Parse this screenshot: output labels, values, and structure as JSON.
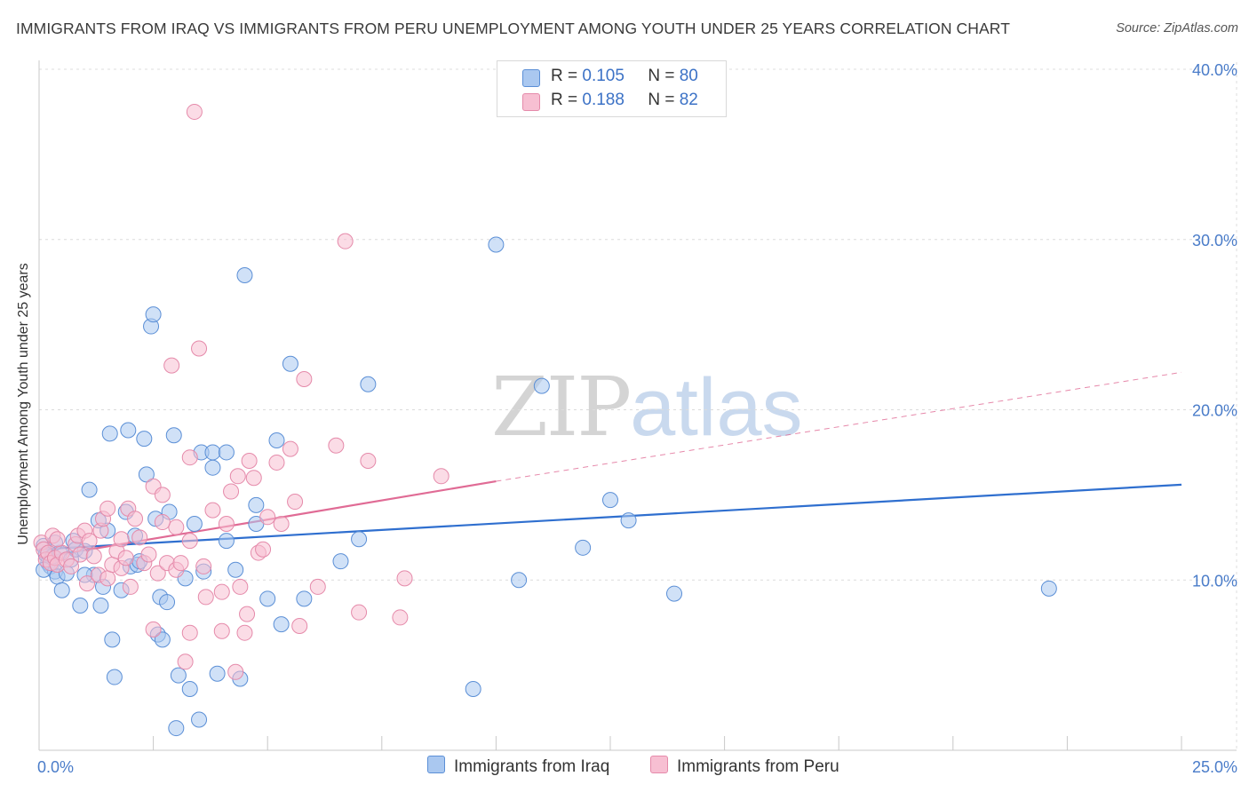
{
  "title": "IMMIGRANTS FROM IRAQ VS IMMIGRANTS FROM PERU UNEMPLOYMENT AMONG YOUTH UNDER 25 YEARS CORRELATION CHART",
  "source": "Source: ZipAtlas.com",
  "watermark": {
    "zip": "ZIP",
    "atlas": "atlas"
  },
  "legend": {
    "r_label": "R =",
    "n_label": "N =",
    "iraq": {
      "r": "0.105",
      "n": "80"
    },
    "peru": {
      "r": "0.188",
      "n": "82"
    }
  },
  "bottom_legend": {
    "iraq": "Immigrants from Iraq",
    "peru": "Immigrants from Peru"
  },
  "colors": {
    "iraq_fill": "#aac8f0",
    "iraq_stroke": "#5b8fd6",
    "iraq_line": "#2f6fcf",
    "peru_fill": "#f7bfd2",
    "peru_stroke": "#e58aaa",
    "peru_line": "#e06b95",
    "grid": "#dcdcdc",
    "tick_text": "#4a7cc9"
  },
  "chart_data": {
    "type": "scatter",
    "title": "IMMIGRANTS FROM IRAQ VS IMMIGRANTS FROM PERU UNEMPLOYMENT AMONG YOUTH UNDER 25 YEARS CORRELATION CHART",
    "xlabel": "",
    "ylabel": "Unemployment Among Youth under 25 years",
    "xlim": [
      0,
      25
    ],
    "ylim": [
      0,
      40
    ],
    "x_tick_labels": [
      "0.0%",
      "25.0%"
    ],
    "y_ticks": [
      10,
      20,
      30,
      40
    ],
    "y_tick_labels": [
      "10.0%",
      "20.0%",
      "30.0%",
      "40.0%"
    ],
    "series": [
      {
        "name": "Immigrants from Iraq",
        "trend": {
          "x": [
            0,
            25
          ],
          "y": [
            11.8,
            15.6
          ],
          "dashed": false
        },
        "points": [
          [
            0.1,
            12.0
          ],
          [
            0.15,
            11.5
          ],
          [
            0.2,
            11.0
          ],
          [
            0.25,
            10.8
          ],
          [
            0.3,
            11.4
          ],
          [
            0.35,
            10.5
          ],
          [
            0.4,
            10.2
          ],
          [
            0.45,
            11.6
          ],
          [
            0.5,
            9.4
          ],
          [
            0.6,
            10.4
          ],
          [
            0.7,
            11.2
          ],
          [
            0.75,
            12.3
          ],
          [
            0.8,
            11.8
          ],
          [
            0.9,
            8.5
          ],
          [
            1.0,
            11.7
          ],
          [
            1.1,
            15.3
          ],
          [
            1.2,
            10.3
          ],
          [
            1.3,
            13.5
          ],
          [
            1.35,
            8.5
          ],
          [
            1.4,
            9.6
          ],
          [
            1.5,
            12.9
          ],
          [
            1.55,
            18.6
          ],
          [
            1.6,
            6.5
          ],
          [
            1.65,
            4.3
          ],
          [
            1.8,
            9.4
          ],
          [
            1.9,
            14.0
          ],
          [
            1.95,
            18.8
          ],
          [
            2.0,
            10.8
          ],
          [
            2.1,
            12.6
          ],
          [
            2.15,
            10.9
          ],
          [
            2.2,
            11.1
          ],
          [
            2.3,
            18.3
          ],
          [
            2.35,
            16.2
          ],
          [
            2.45,
            24.9
          ],
          [
            2.5,
            25.6
          ],
          [
            2.55,
            13.6
          ],
          [
            2.6,
            6.8
          ],
          [
            2.65,
            9.0
          ],
          [
            2.7,
            6.5
          ],
          [
            2.8,
            8.7
          ],
          [
            2.85,
            14.0
          ],
          [
            2.95,
            18.5
          ],
          [
            3.0,
            1.3
          ],
          [
            3.05,
            4.4
          ],
          [
            3.2,
            10.1
          ],
          [
            3.3,
            3.6
          ],
          [
            3.4,
            13.3
          ],
          [
            3.5,
            1.8
          ],
          [
            3.55,
            17.5
          ],
          [
            3.6,
            10.5
          ],
          [
            3.8,
            16.6
          ],
          [
            3.8,
            17.5
          ],
          [
            3.9,
            4.5
          ],
          [
            4.1,
            12.3
          ],
          [
            4.1,
            17.5
          ],
          [
            4.3,
            10.6
          ],
          [
            4.4,
            4.2
          ],
          [
            4.5,
            27.9
          ],
          [
            4.75,
            14.4
          ],
          [
            4.75,
            13.3
          ],
          [
            5.0,
            8.9
          ],
          [
            5.2,
            18.2
          ],
          [
            5.3,
            7.4
          ],
          [
            5.5,
            22.7
          ],
          [
            5.8,
            8.9
          ],
          [
            6.6,
            11.1
          ],
          [
            7.0,
            12.4
          ],
          [
            7.2,
            21.5
          ],
          [
            9.5,
            3.6
          ],
          [
            10.0,
            29.7
          ],
          [
            10.5,
            10.0
          ],
          [
            11.0,
            21.4
          ],
          [
            11.9,
            11.9
          ],
          [
            12.5,
            14.7
          ],
          [
            12.9,
            13.5
          ],
          [
            13.9,
            9.2
          ],
          [
            22.1,
            9.5
          ],
          [
            0.1,
            10.6
          ],
          [
            0.35,
            12.2
          ],
          [
            1.0,
            10.3
          ]
        ]
      },
      {
        "name": "Immigrants from Peru",
        "trend": {
          "x": [
            0,
            10
          ],
          "y": [
            11.3,
            15.8
          ],
          "dashed": false,
          "extension": {
            "x": [
              10,
              25
            ],
            "y": [
              15.8,
              22.2
            ],
            "dashed": true
          }
        },
        "points": [
          [
            0.05,
            12.2
          ],
          [
            0.1,
            11.8
          ],
          [
            0.15,
            11.2
          ],
          [
            0.2,
            11.6
          ],
          [
            0.25,
            11.0
          ],
          [
            0.3,
            12.6
          ],
          [
            0.35,
            11.3
          ],
          [
            0.4,
            10.9
          ],
          [
            0.5,
            11.6
          ],
          [
            0.6,
            11.2
          ],
          [
            0.7,
            10.8
          ],
          [
            0.8,
            12.1
          ],
          [
            0.85,
            12.6
          ],
          [
            0.9,
            11.5
          ],
          [
            1.0,
            12.9
          ],
          [
            1.05,
            9.8
          ],
          [
            1.2,
            11.4
          ],
          [
            1.3,
            10.3
          ],
          [
            1.35,
            12.9
          ],
          [
            1.4,
            13.6
          ],
          [
            1.5,
            10.1
          ],
          [
            1.5,
            14.2
          ],
          [
            1.6,
            10.9
          ],
          [
            1.7,
            11.7
          ],
          [
            1.8,
            12.4
          ],
          [
            1.8,
            10.7
          ],
          [
            1.9,
            11.3
          ],
          [
            1.95,
            14.2
          ],
          [
            2.0,
            9.6
          ],
          [
            2.1,
            13.6
          ],
          [
            2.2,
            12.5
          ],
          [
            2.3,
            11.0
          ],
          [
            2.4,
            11.5
          ],
          [
            2.5,
            15.5
          ],
          [
            2.5,
            7.1
          ],
          [
            2.6,
            10.4
          ],
          [
            2.7,
            15.0
          ],
          [
            2.8,
            11.0
          ],
          [
            2.9,
            22.6
          ],
          [
            3.0,
            13.1
          ],
          [
            3.0,
            10.6
          ],
          [
            3.1,
            11.0
          ],
          [
            3.2,
            5.2
          ],
          [
            3.3,
            12.3
          ],
          [
            3.3,
            17.2
          ],
          [
            3.4,
            37.5
          ],
          [
            3.5,
            23.6
          ],
          [
            3.6,
            10.8
          ],
          [
            3.65,
            9.0
          ],
          [
            3.8,
            14.1
          ],
          [
            4.0,
            7.0
          ],
          [
            4.0,
            9.3
          ],
          [
            4.1,
            13.3
          ],
          [
            4.2,
            15.2
          ],
          [
            4.3,
            4.6
          ],
          [
            4.35,
            16.1
          ],
          [
            4.4,
            9.6
          ],
          [
            4.5,
            6.9
          ],
          [
            4.55,
            8.0
          ],
          [
            4.6,
            17.0
          ],
          [
            4.7,
            16.0
          ],
          [
            4.8,
            11.6
          ],
          [
            4.9,
            11.8
          ],
          [
            5.0,
            13.7
          ],
          [
            5.2,
            16.9
          ],
          [
            5.3,
            13.3
          ],
          [
            5.5,
            17.7
          ],
          [
            5.6,
            14.6
          ],
          [
            5.7,
            7.3
          ],
          [
            5.8,
            21.8
          ],
          [
            6.1,
            9.6
          ],
          [
            6.5,
            17.9
          ],
          [
            6.7,
            29.9
          ],
          [
            7.0,
            8.1
          ],
          [
            7.2,
            17.0
          ],
          [
            7.9,
            7.8
          ],
          [
            8.0,
            10.1
          ],
          [
            8.8,
            16.1
          ],
          [
            3.3,
            6.9
          ],
          [
            1.1,
            12.3
          ],
          [
            0.4,
            12.4
          ],
          [
            2.7,
            13.4
          ]
        ]
      }
    ]
  }
}
